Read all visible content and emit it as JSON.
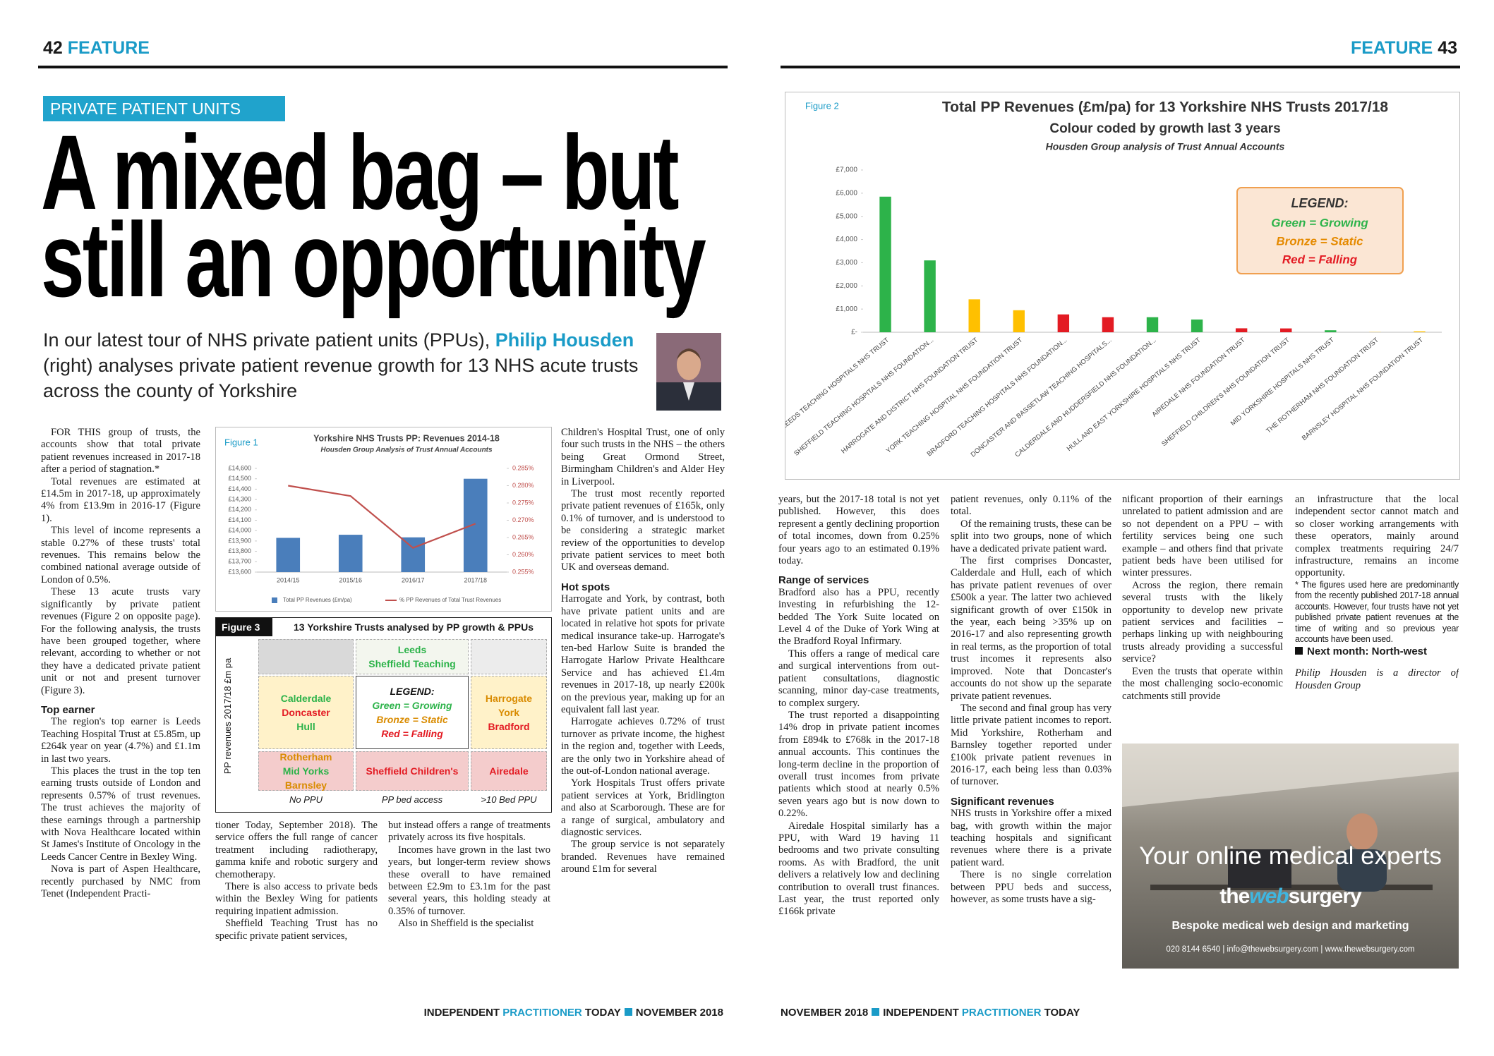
{
  "header_left": {
    "number": "42",
    "section": "FEATURE"
  },
  "header_right": {
    "section": "FEATURE",
    "number": "43"
  },
  "kicker": "PRIVATE PATIENT UNITS",
  "headline": [
    "A mixed bag – but",
    "still an opportunity"
  ],
  "standfirst": [
    "In our latest tour of NHS private patient units (PPUs), ",
    "Philip Housden",
    " (right) analyses private patient revenue growth for 13 NHS acute trusts across the county of Yorkshire"
  ],
  "columns": [
    [
      {
        "type": "p",
        "text": "FOR THIS group of trusts, the accounts show that total private patient revenues increased in 2017-18 after a period of stagnation.*"
      },
      {
        "type": "p",
        "text": "Total revenues are estimated at £14.5m in 2017-18, up approximately 4% from £13.9m in 2016-17 (Figure 1)."
      },
      {
        "type": "p",
        "text": "This level of income represents a stable 0.27% of these trusts' total revenues. This remains below the combined national average outside of London of 0.5%."
      },
      {
        "type": "p",
        "text": "These 13 acute trusts vary significantly by private patient revenues (Figure 2 on opposite page). For the following analysis, the trusts have been grouped together, where relevant, according to whether or not they have a dedicated private patient unit or not and present turnover (Figure 3)."
      },
      {
        "type": "h",
        "text": "Top earner"
      },
      {
        "type": "p",
        "text": "The region's top earner is Leeds Teaching Hospital Trust at £5.85m, up £264k year on year (4.7%) and £1.1m in last two years."
      },
      {
        "type": "p",
        "text": "This places the trust in the top ten earning trusts outside of London and represents 0.57% of trust revenues. The trust achieves the majority of these earnings through a partnership with Nova Healthcare located within St James's Institute of Oncology in the Leeds Cancer Centre in Bexley Wing."
      },
      {
        "type": "p",
        "text": "Nova is part of Aspen Healthcare, recently purchased by NMC from Tenet (Independent Practi-"
      }
    ],
    [
      {
        "type": "c",
        "text": "tioner Today, September 2018). The service offers the full range of cancer treatment including radiotherapy, gamma knife and robotic surgery and chemotherapy."
      },
      {
        "type": "p",
        "text": "There is also access to private beds within the Bexley Wing for patients requiring inpatient admission."
      },
      {
        "type": "p",
        "text": "Sheffield Teaching Trust has no specific private patient services,"
      }
    ],
    [
      {
        "type": "c",
        "text": "but instead offers a range of treatments privately across its five hospitals."
      },
      {
        "type": "p",
        "text": "Incomes have grown in the last two years, but longer-term review shows these overall to have remained between £2.9m to £3.1m for the past several years, this holding steady at 0.35% of turnover."
      },
      {
        "type": "p",
        "text": "Also in Sheffield is the specialist"
      }
    ],
    [
      {
        "type": "c",
        "text": "Children's Hospital Trust, one of only four such trusts in the NHS – the others being Great Ormond Street, Birmingham Children's and Alder Hey in Liverpool."
      },
      {
        "type": "p",
        "text": "The trust most recently reported private patient revenues of £165k, only 0.1% of turnover, and is understood to be considering a strategic market review of the opportunities to develop private patient services to meet both UK and overseas demand."
      },
      {
        "type": "h",
        "text": "Hot spots"
      },
      {
        "type": "c",
        "text": "Harrogate and York, by contrast, both have private patient units and are located in relative hot spots for private medical insurance take-up. Harrogate's ten-bed Harlow Suite is branded the Harrogate Harlow Private Healthcare Service and has achieved £1.4m revenues in 2017-18, up nearly £200k on the previous year, making up for an equivalent fall last year."
      },
      {
        "type": "p",
        "text": "Harrogate achieves 0.72% of trust turnover as private income, the highest in the region and, together with Leeds, are the only two in Yorkshire ahead of the out-of-London national average."
      },
      {
        "type": "p",
        "text": "York Hospitals Trust offers private patient services at York, Bridlington and also at Scarborough. These are for a range of surgical, ambulatory and diagnostic services."
      },
      {
        "type": "p",
        "text": "The group service is not separately branded. Revenues have remained around £1m for several"
      }
    ],
    [
      {
        "type": "c",
        "text": "years, but the 2017-18 total is not yet published. However, this does represent a gently declining proportion of total incomes, down from 0.25% four years ago to an estimated 0.19% today."
      },
      {
        "type": "h",
        "text": "Range of services"
      },
      {
        "type": "c",
        "text": "Bradford also has a PPU, recently investing in refurbishing the 12-bedded The York Suite located on Level 4 of the Duke of York Wing at the Bradford Royal Infirmary."
      },
      {
        "type": "p",
        "text": "This offers a range of medical care and surgical interventions from out-patient consultations, diagnostic scanning, minor day-case treatments, to complex surgery."
      },
      {
        "type": "p",
        "text": "The trust reported a disappointing 14% drop in private patient incomes from £894k to £768k in the 2017-18 annual accounts. This continues the long-term decline in the proportion of overall trust incomes from private patients which stood at nearly 0.5% seven years ago but is now down to 0.22%."
      },
      {
        "type": "p",
        "text": "Airedale Hospital similarly has a PPU, with Ward 19 having 11 bedrooms and two private consulting rooms. As with Bradford, the unit delivers a relatively low and declining contribution to overall trust finances. Last year, the trust reported only £166k private"
      }
    ],
    [
      {
        "type": "c",
        "text": "patient revenues, only 0.11% of the total."
      },
      {
        "type": "p",
        "text": "Of the remaining trusts, these can be split into two groups, none of which have a dedicated private patient ward."
      },
      {
        "type": "p",
        "text": "The first comprises Doncaster, Calderdale and Hull, each of which has private patient revenues of over £500k a year. The latter two achieved significant growth of over £150k in the year, each being >35% up on 2016-17 and also representing growth in real terms, as the proportion of total trust incomes it represents also improved. Note that Doncaster's accounts do not show up the separate private patient revenues."
      },
      {
        "type": "p",
        "text": "The second and final group has very little private patient incomes to report. Mid Yorkshire, Rotherham and Barnsley together reported under £100k private patient revenues in 2016-17, each being less than 0.03% of turnover."
      },
      {
        "type": "h",
        "text": "Significant revenues"
      },
      {
        "type": "c",
        "text": "NHS trusts in Yorkshire offer a mixed bag, with growth within the major teaching hospitals and significant revenues where there is a private patient ward."
      },
      {
        "type": "p",
        "text": "There is no single correlation between PPU beds and success, however, as some trusts have a sig-"
      }
    ],
    [
      {
        "type": "c",
        "text": "nificant proportion of their earnings unrelated to patient admission and are so not dependent on a PPU – with fertility services being one such example – and others find that private patient beds have been utilised for winter pressures."
      },
      {
        "type": "p",
        "text": "Across the region, there remain several trusts with the likely opportunity to develop new private patient services and facilities – perhaps linking up with neighbouring trusts already providing a successful service?"
      },
      {
        "type": "p",
        "text": "Even the trusts that operate within the most challenging socio-economic catchments still provide"
      }
    ],
    [
      {
        "type": "c",
        "text": "an infrastructure that the local independent sector cannot match and so closer working arrangements with these operators, mainly around complex treatments requiring 24/7 infrastructure, remains an income opportunity."
      },
      {
        "type": "note",
        "text": "* The figures used here are predominantly from the recently published 2017-18 annual accounts. However, four trusts have not yet published private patient revenues at the time of writing and so previous year accounts have been used."
      },
      {
        "type": "next",
        "text": "Next month: North-west"
      },
      {
        "type": "byline",
        "text": "Philip Housden is a director of Housden Group"
      }
    ]
  ],
  "figure3": {
    "label": "Figure 3",
    "title": "13 Yorkshire Trusts analysed by PP growth & PPUs",
    "y_label": "PP revenues 2017/18 £m pa",
    "columns": [
      "No PPU",
      "PP bed access",
      ">10 Bed PPU"
    ],
    "cells": [
      [
        [],
        [
          {
            "name": "Leeds",
            "color": "#2db34a"
          },
          {
            "name": "Sheffield Teaching",
            "color": "#2db34a"
          }
        ],
        []
      ],
      [
        [
          {
            "name": "Calderdale",
            "color": "#2db34a"
          },
          {
            "name": "Doncaster",
            "color": "#e31b23"
          },
          {
            "name": "Hull",
            "color": "#2db34a"
          }
        ],
        [],
        [
          {
            "name": "Harrogate",
            "color": "#d98b00"
          },
          {
            "name": "York",
            "color": "#d98b00"
          },
          {
            "name": "Bradford",
            "color": "#e31b23"
          }
        ]
      ],
      [
        [
          {
            "name": "Rotherham",
            "color": "#d98b00"
          },
          {
            "name": "Mid Yorks",
            "color": "#2db34a"
          },
          {
            "name": "Barnsley",
            "color": "#d98b00"
          }
        ],
        [
          {
            "name": "Sheffield Children's",
            "color": "#e31b23"
          }
        ],
        [
          {
            "name": "Airedale",
            "color": "#e31b23"
          }
        ]
      ]
    ],
    "legend_title": "LEGEND:",
    "legend": [
      {
        "text": "Green = Growing",
        "color": "#2db34a"
      },
      {
        "text": "Bronze = Static",
        "color": "#d98b00"
      },
      {
        "text": "Red = Falling",
        "color": "#e31b23"
      }
    ]
  },
  "ad": {
    "headline": "Your online medical experts",
    "brand": [
      "the",
      "web",
      "surgery"
    ],
    "tagline": "Bespoke medical web design and marketing",
    "contact": "020 8144 6540  |  info@thewebsurgery.com  |  www.thewebsurgery.com"
  },
  "footer_left": [
    "INDEPENDENT",
    "PRACTITIONER",
    "TODAY",
    "NOVEMBER 2018"
  ],
  "footer_right": [
    "NOVEMBER 2018",
    "INDEPENDENT",
    "PRACTITIONER",
    "TODAY"
  ],
  "chart_data": [
    {
      "type": "bar",
      "label": "Figure 1",
      "title": "Yorkshire NHS Trusts PP: Revenues 2014-18",
      "subtitle": "Housden Group Analysis of Trust Annual Accounts",
      "categories": [
        "2014/15",
        "2015/16",
        "2016/17",
        "2017/18"
      ],
      "series": [
        {
          "name": "Total PP Revenues (£m/pa)",
          "type": "bar",
          "color": "#4a7ebb",
          "values": [
            13930,
            13960,
            13935,
            14500
          ]
        },
        {
          "name": "% PP Revenues of Total Trust Revenues",
          "type": "line",
          "axis": "y2",
          "color": "#c0504d",
          "values": [
            0.28,
            0.277,
            0.262,
            0.269
          ]
        }
      ],
      "ylim": [
        13600,
        14600
      ],
      "yticks": [
        {
          "value": 13600,
          "label": "£13,600"
        },
        {
          "value": 13700,
          "label": "£13,700"
        },
        {
          "value": 13800,
          "label": "£13,800"
        },
        {
          "value": 13900,
          "label": "£13,900"
        },
        {
          "value": 14000,
          "label": "£14,000"
        },
        {
          "value": 14100,
          "label": "£14,100"
        },
        {
          "value": 14200,
          "label": "£14,200"
        },
        {
          "value": 14300,
          "label": "£14,300"
        },
        {
          "value": 14400,
          "label": "£14,400"
        },
        {
          "value": 14500,
          "label": "£14,500"
        },
        {
          "value": 14600,
          "label": "£14,600"
        }
      ],
      "y2lim": [
        0.255,
        0.285
      ],
      "y2ticks": [
        {
          "value": 0.255,
          "label": "0.255%"
        },
        {
          "value": 0.26,
          "label": "0.260%"
        },
        {
          "value": 0.265,
          "label": "0.265%"
        },
        {
          "value": 0.27,
          "label": "0.270%"
        },
        {
          "value": 0.275,
          "label": "0.275%"
        },
        {
          "value": 0.28,
          "label": "0.280%"
        },
        {
          "value": 0.285,
          "label": "0.285%"
        }
      ],
      "grid": false,
      "legend": "bottom"
    },
    {
      "type": "bar",
      "label": "Figure 2",
      "title": "Total PP Revenues (£m/pa) for 13 Yorkshire NHS Trusts 2017/18",
      "subtitle": "Colour coded by growth last 3 years",
      "note": "Housden Group analysis of Trust Annual Accounts",
      "categories": [
        "LEEDS TEACHING HOSPITALS NHS TRUST",
        "SHEFFIELD TEACHING HOSPITALS NHS FOUNDATION...",
        "HARROGATE AND DISTRICT NHS FOUNDATION TRUST",
        "YORK TEACHING HOSPITAL NHS FOUNDATION TRUST",
        "BRADFORD TEACHING HOSPITALS NHS FOUNDATION...",
        "DONCASTER AND BASSETLAW TEACHING HOSPITALS...",
        "CALDERDALE AND HUDDERSFIELD NHS FOUNDATION...",
        "HULL AND EAST YORKSHIRE HOSPITALS NHS TRUST",
        "AIREDALE NHS FOUNDATION TRUST",
        "SHEFFIELD CHILDREN'S NHS FOUNDATION TRUST",
        "MID YORKSHIRE HOSPITALS NHS TRUST",
        "THE ROTHERHAM NHS FOUNDATION TRUST",
        "BARNSLEY HOSPITAL NHS FOUNDATION TRUST"
      ],
      "values": [
        5850,
        3100,
        1420,
        950,
        770,
        650,
        650,
        550,
        170,
        165,
        85,
        10,
        40
      ],
      "colors": [
        "#2db34a",
        "#2db34a",
        "#ffc000",
        "#ffc000",
        "#e31b23",
        "#e31b23",
        "#2db34a",
        "#2db34a",
        "#e31b23",
        "#e31b23",
        "#2db34a",
        "#ffc000",
        "#ffc000"
      ],
      "ylim": [
        0,
        7000
      ],
      "yticks": [
        {
          "value": 0,
          "label": "£-"
        },
        {
          "value": 1000,
          "label": "£1,000"
        },
        {
          "value": 2000,
          "label": "£2,000"
        },
        {
          "value": 3000,
          "label": "£3,000"
        },
        {
          "value": 4000,
          "label": "£4,000"
        },
        {
          "value": 5000,
          "label": "£5,000"
        },
        {
          "value": 6000,
          "label": "£6,000"
        },
        {
          "value": 7000,
          "label": "£7,000"
        }
      ],
      "grid": false,
      "legend_title": "LEGEND:",
      "legend": [
        {
          "text": "Green = Growing",
          "color": "#2db34a"
        },
        {
          "text": "Bronze = Static",
          "color": "#e58a00"
        },
        {
          "text": "Red = Falling",
          "color": "#e31b23"
        }
      ]
    }
  ]
}
